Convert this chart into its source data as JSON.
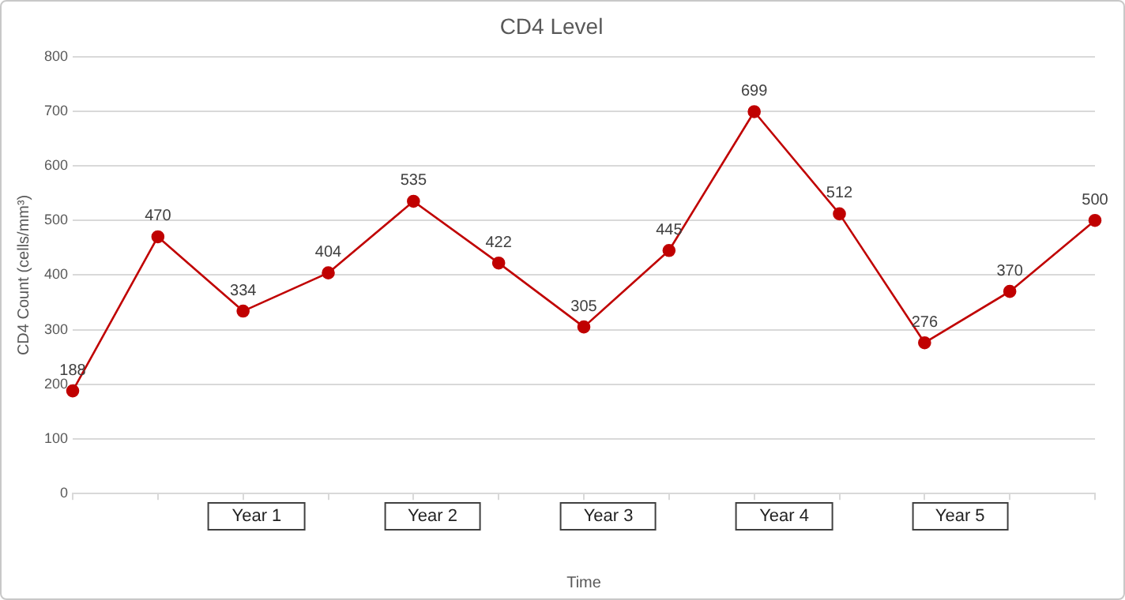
{
  "chart_data": {
    "type": "line",
    "title": "CD4 Level",
    "xlabel": "Time",
    "ylabel": "CD4 Count (cells/mm³)",
    "categories": [
      null,
      null,
      null,
      null,
      null,
      null,
      null,
      null,
      null,
      null,
      null,
      null,
      null
    ],
    "series": [
      {
        "color": "#c00000",
        "values": [
          188,
          470,
          334,
          404,
          535,
          422,
          305,
          445,
          699,
          512,
          276,
          370,
          500
        ]
      }
    ],
    "ylim": [
      0,
      800
    ],
    "yticks": [
      0,
      100,
      200,
      300,
      400,
      500,
      600,
      700,
      800
    ],
    "annotations": [
      "Year 1",
      "Year 2",
      "Year 3",
      "Year 4",
      "Year 5"
    ],
    "grid": "y",
    "legend": false,
    "marker": "circle",
    "line_style": "solid",
    "data_labels": true
  }
}
